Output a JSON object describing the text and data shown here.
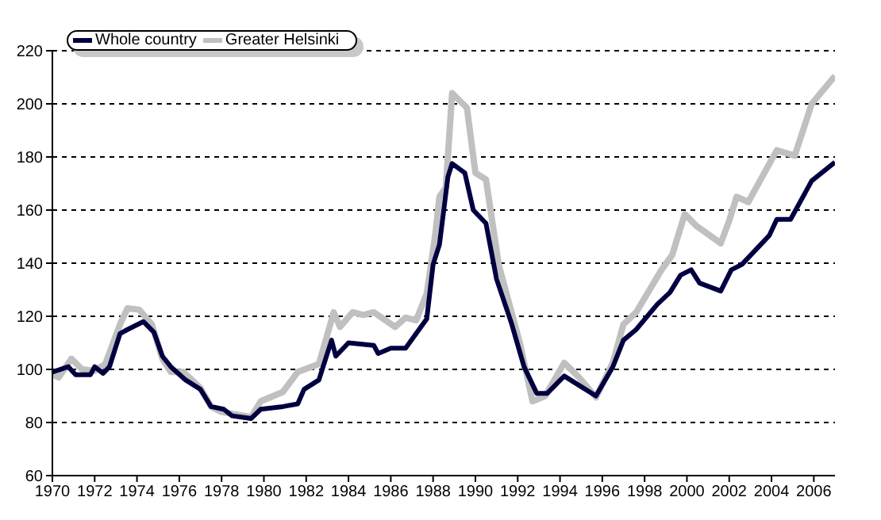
{
  "chart_data": {
    "type": "line",
    "xlim": [
      1970,
      2007
    ],
    "xticks": [
      1970,
      1972,
      1974,
      1976,
      1978,
      1980,
      1982,
      1984,
      1986,
      1988,
      1990,
      1992,
      1994,
      1996,
      1998,
      2000,
      2002,
      2004,
      2006
    ],
    "ylim": [
      60,
      220
    ],
    "yticks": [
      60,
      80,
      100,
      120,
      140,
      160,
      180,
      200,
      220
    ],
    "grid": "y",
    "legend": "top left",
    "marker": "none",
    "line_style": "solid",
    "series": [
      {
        "name": "Whole country",
        "color": "#000040",
        "x": [
          1970,
          1970.75,
          1971.1,
          1971.8,
          1972,
          1972.4,
          1972.7,
          1973.2,
          1973.55,
          1974.3,
          1974.8,
          1975.2,
          1975.6,
          1976.3,
          1977,
          1977.5,
          1978.1,
          1978.5,
          1979.4,
          1979.85,
          1980.9,
          1981.6,
          1981.9,
          1982.6,
          1983.2,
          1983.4,
          1984,
          1985.2,
          1985.4,
          1986,
          1986.7,
          1987.2,
          1987.7,
          1988,
          1988.3,
          1988.7,
          1988.9,
          1989.5,
          1989.9,
          1990.5,
          1991,
          1991.7,
          1992.3,
          1992.9,
          1993.4,
          1994.2,
          1994.9,
          1995.7,
          1996.5,
          1997,
          1997.6,
          1998.6,
          1999.2,
          1999.7,
          2000.2,
          2000.6,
          2001.6,
          2002.1,
          2002.6,
          2003.9,
          2004.25,
          2004.9,
          2005.9,
          2007
        ],
        "values": [
          99,
          101,
          98,
          98,
          101,
          98.5,
          101,
          113.5,
          115,
          118,
          114,
          105,
          101,
          96,
          92.5,
          86,
          85,
          82.5,
          81.5,
          85,
          86,
          87,
          92.5,
          96,
          111,
          105,
          110,
          109,
          106,
          108,
          108,
          113.5,
          119,
          139.5,
          147,
          172.5,
          177.5,
          174,
          160,
          155,
          134,
          117.5,
          101,
          91,
          91,
          97.5,
          94,
          90,
          101,
          111,
          115,
          124.5,
          129,
          135.5,
          137.5,
          132.5,
          129.5,
          137.5,
          139.5,
          150.5,
          156.5,
          156.5,
          171,
          178
        ]
      },
      {
        "name": "Greater Helsinki",
        "color": "#c0c0c0",
        "x": [
          1970,
          1970.3,
          1970.9,
          1971.4,
          1972,
          1972.5,
          1973.2,
          1973.55,
          1974.1,
          1974.7,
          1975.2,
          1975.6,
          1976.2,
          1977,
          1977.5,
          1978,
          1979.4,
          1979.85,
          1980.9,
          1981.6,
          1982.6,
          1983.3,
          1983.6,
          1984.2,
          1984.7,
          1985.2,
          1986.2,
          1986.7,
          1987.2,
          1987.7,
          1988.1,
          1988.3,
          1988.6,
          1988.9,
          1989.6,
          1990,
          1990.5,
          1991.1,
          1992.1,
          1992.7,
          1993.3,
          1994.2,
          1994.9,
          1995.7,
          1996.5,
          1997,
          1997.6,
          1998.8,
          1999.3,
          1999.9,
          2000.45,
          2001.6,
          2002,
          2002.35,
          2002.9,
          2004.25,
          2005.1,
          2005.9,
          2007
        ],
        "values": [
          98,
          97,
          104,
          100,
          99.5,
          102,
          117,
          123,
          122.5,
          117,
          104,
          99,
          99,
          93,
          86,
          84,
          82,
          88,
          91.5,
          99,
          102,
          121.5,
          116,
          121.5,
          120.5,
          121.5,
          116,
          119.5,
          118.5,
          128.5,
          150.5,
          165,
          168.5,
          204,
          198.5,
          174,
          171.5,
          139.5,
          110,
          88,
          90,
          102.5,
          97,
          89.5,
          102.5,
          117,
          121.5,
          137.5,
          143,
          158.5,
          154,
          147.5,
          156,
          165,
          163,
          182.5,
          180.5,
          200,
          210.5
        ]
      }
    ]
  }
}
